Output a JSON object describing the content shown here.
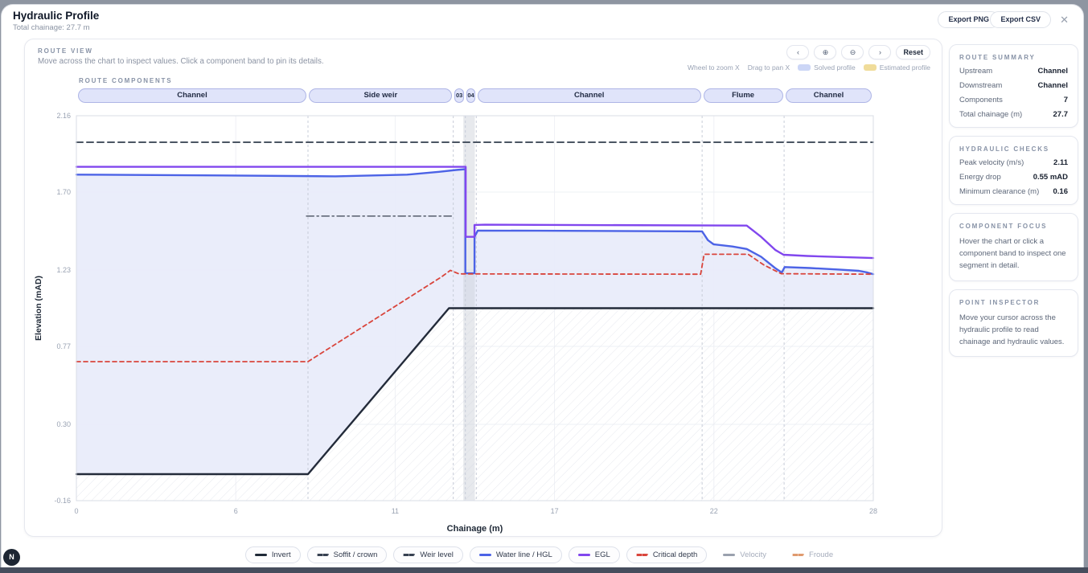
{
  "header": {
    "title": "Hydraulic Profile",
    "subtitle": "Total chainage: 27.7 m",
    "export_png": "Export PNG",
    "export_csv": "Export CSV",
    "close_glyph": "✕"
  },
  "route_view": {
    "label": "ROUTE VIEW",
    "hint": "Move across the chart to inspect values. Click a component band to pin its details.",
    "toolbar": {
      "pan_left_glyph": "‹",
      "zoom_in_glyph": "⊕",
      "zoom_out_glyph": "⊖",
      "pan_right_glyph": "›",
      "reset_label": "Reset"
    },
    "hints_right": {
      "wheel": "Wheel to zoom X",
      "drag": "Drag to pan X",
      "solved_label": "Solved profile",
      "solved_color": "#ccd6f6",
      "estimated_label": "Estimated profile",
      "estimated_color": "#f0dc9a"
    }
  },
  "components": {
    "label": "ROUTE COMPONENTS",
    "items": [
      {
        "label": "Channel",
        "start": 0,
        "end": 8.05
      },
      {
        "label": "Side weir",
        "start": 8.05,
        "end": 13.1
      },
      {
        "label": "03",
        "start": 13.1,
        "end": 13.52
      },
      {
        "label": "04",
        "start": 13.52,
        "end": 13.9
      },
      {
        "label": "Channel",
        "start": 13.9,
        "end": 21.75
      },
      {
        "label": "Flume",
        "start": 21.75,
        "end": 24.6
      },
      {
        "label": "Channel",
        "start": 24.6,
        "end": 27.7
      }
    ]
  },
  "chart_data": {
    "type": "line",
    "xlabel": "Chainage (m)",
    "ylabel": "Elevation (mAD)",
    "xlim": [
      0,
      27.7
    ],
    "ylim": [
      -0.16,
      2.16
    ],
    "xticks": [
      {
        "v": 0,
        "label": "0"
      },
      {
        "v": 5.54,
        "label": "6"
      },
      {
        "v": 11.08,
        "label": "11"
      },
      {
        "v": 16.62,
        "label": "17"
      },
      {
        "v": 22.16,
        "label": "22"
      },
      {
        "v": 27.7,
        "label": "28"
      }
    ],
    "yticks": [
      {
        "v": 2.16,
        "label": "2.16"
      },
      {
        "v": 1.7,
        "label": "1.70"
      },
      {
        "v": 1.23,
        "label": "1.23"
      },
      {
        "v": 0.77,
        "label": "0.77"
      },
      {
        "v": 0.3,
        "label": "0.30"
      },
      {
        "v": -0.16,
        "label": "-0.16"
      }
    ],
    "boundaries": [
      8.05,
      13.1,
      13.52,
      13.9,
      21.75,
      24.6
    ],
    "highlight_band": {
      "x0": 13.45,
      "x1": 13.85
    },
    "fill_color": "#e8ebfa",
    "series": [
      {
        "name": "Invert",
        "color": "#232b3a",
        "width": 2.4,
        "dash": null,
        "points": [
          [
            0,
            0.0
          ],
          [
            8.05,
            0.0
          ],
          [
            12.95,
            1.0
          ],
          [
            27.7,
            1.0
          ]
        ]
      },
      {
        "name": "Soffit / crown",
        "color": "#4b5563",
        "width": 2,
        "dash": "8 5",
        "points": [
          [
            0,
            2.0
          ],
          [
            27.7,
            2.0
          ]
        ]
      },
      {
        "name": "Weir level",
        "color": "#6b7280",
        "width": 1.8,
        "dash": "9 4 2 4",
        "points": [
          [
            8.0,
            1.555
          ],
          [
            13.1,
            1.555
          ]
        ]
      },
      {
        "name": "Water line / HGL",
        "color": "#4c63e6",
        "width": 2.4,
        "dash": null,
        "points": [
          [
            0,
            1.805
          ],
          [
            5,
            1.8
          ],
          [
            9,
            1.795
          ],
          [
            11.5,
            1.805
          ],
          [
            12.6,
            1.822
          ],
          [
            13.2,
            1.833
          ],
          [
            13.52,
            1.838
          ],
          [
            13.52,
            1.21
          ],
          [
            13.84,
            1.21
          ],
          [
            13.84,
            1.43
          ],
          [
            13.95,
            1.468
          ],
          [
            16,
            1.467
          ],
          [
            21.75,
            1.463
          ],
          [
            21.95,
            1.41
          ],
          [
            22.15,
            1.385
          ],
          [
            22.8,
            1.372
          ],
          [
            23.3,
            1.357
          ],
          [
            23.8,
            1.31
          ],
          [
            24.3,
            1.24
          ],
          [
            24.52,
            1.215
          ],
          [
            24.62,
            1.248
          ],
          [
            25.5,
            1.242
          ],
          [
            26.5,
            1.233
          ],
          [
            27.2,
            1.225
          ],
          [
            27.5,
            1.215
          ],
          [
            27.7,
            1.205
          ]
        ]
      },
      {
        "name": "EGL",
        "color": "#8147ee",
        "width": 2.4,
        "dash": null,
        "points": [
          [
            0,
            1.852
          ],
          [
            13.53,
            1.852
          ],
          [
            13.53,
            1.43
          ],
          [
            13.84,
            1.43
          ],
          [
            13.84,
            1.502
          ],
          [
            14.2,
            1.503
          ],
          [
            23.3,
            1.498
          ],
          [
            23.8,
            1.43
          ],
          [
            24.3,
            1.35
          ],
          [
            24.58,
            1.322
          ],
          [
            25.4,
            1.315
          ],
          [
            27.7,
            1.302
          ]
        ]
      },
      {
        "name": "Critical depth",
        "color": "#d9453c",
        "width": 1.8,
        "dash": "5 4",
        "points": [
          [
            0,
            0.678
          ],
          [
            8.05,
            0.678
          ],
          [
            12.7,
            1.19
          ],
          [
            13.0,
            1.228
          ],
          [
            13.3,
            1.207
          ],
          [
            21.7,
            1.205
          ],
          [
            21.82,
            1.325
          ],
          [
            23.35,
            1.325
          ],
          [
            23.9,
            1.26
          ],
          [
            24.5,
            1.208
          ],
          [
            27.7,
            1.205
          ]
        ]
      }
    ]
  },
  "sidebar": {
    "cards": [
      {
        "title": "ROUTE SUMMARY",
        "rows": [
          {
            "label": "Upstream",
            "value": "Channel"
          },
          {
            "label": "Downstream",
            "value": "Channel"
          },
          {
            "label": "Components",
            "value": "7"
          },
          {
            "label": "Total chainage (m)",
            "value": "27.7"
          }
        ]
      },
      {
        "title": "HYDRAULIC CHECKS",
        "rows": [
          {
            "label": "Peak velocity (m/s)",
            "value": "2.11"
          },
          {
            "label": "Energy drop",
            "value": "0.55 mAD"
          },
          {
            "label": "Minimum clearance (m)",
            "value": "0.16"
          }
        ]
      },
      {
        "title": "COMPONENT FOCUS",
        "text": "Hover the chart or click a component band to inspect one segment in detail."
      },
      {
        "title": "POINT INSPECTOR",
        "text": "Move your cursor across the hydraulic profile to read chainage and hydraulic values."
      }
    ]
  },
  "legend": {
    "items": [
      {
        "label": "Invert",
        "color": "#1f2937",
        "dash": "solid",
        "active": true
      },
      {
        "label": "Soffit / crown",
        "color": "#374151",
        "dash": "dashed",
        "active": true
      },
      {
        "label": "Weir level",
        "color": "#374151",
        "dash": "dashed",
        "active": true
      },
      {
        "label": "Water line / HGL",
        "color": "#4c63e6",
        "dash": "solid",
        "active": true
      },
      {
        "label": "EGL",
        "color": "#8147ee",
        "dash": "solid",
        "active": true
      },
      {
        "label": "Critical depth",
        "color": "#d9453c",
        "dash": "dashed",
        "active": true
      },
      {
        "label": "Velocity",
        "color": "#9aa1ae",
        "dash": "solid",
        "active": false
      },
      {
        "label": "Froude",
        "color": "#e09a6e",
        "dash": "dashed",
        "active": false
      }
    ]
  },
  "footer": {
    "badge": "N"
  }
}
